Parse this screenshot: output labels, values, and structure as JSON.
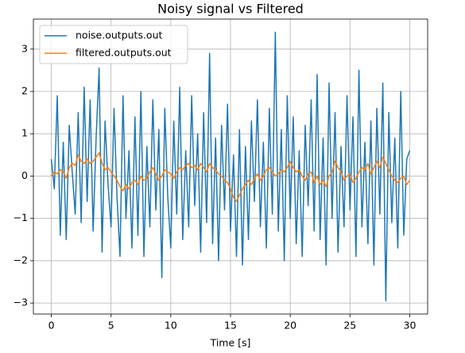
{
  "chart_data": {
    "type": "line",
    "title": "Noisy signal vs Filtered",
    "xlabel": "Time [s]",
    "x": [
      0,
      0.25,
      0.5,
      0.75,
      1,
      1.25,
      1.5,
      1.75,
      2,
      2.25,
      2.5,
      2.75,
      3,
      3.25,
      3.5,
      3.75,
      4,
      4.25,
      4.5,
      4.75,
      5,
      5.25,
      5.5,
      5.75,
      6,
      6.25,
      6.5,
      6.75,
      7,
      7.25,
      7.5,
      7.75,
      8,
      8.25,
      8.5,
      8.75,
      9,
      9.25,
      9.5,
      9.75,
      10,
      10.25,
      10.5,
      10.75,
      11,
      11.25,
      11.5,
      11.75,
      12,
      12.25,
      12.5,
      12.75,
      13,
      13.25,
      13.5,
      13.75,
      14,
      14.25,
      14.5,
      14.75,
      15,
      15.25,
      15.5,
      15.75,
      16,
      16.25,
      16.5,
      16.75,
      17,
      17.25,
      17.5,
      17.75,
      18,
      18.25,
      18.5,
      18.75,
      19,
      19.25,
      19.5,
      19.75,
      20,
      20.25,
      20.5,
      20.75,
      21,
      21.25,
      21.5,
      21.75,
      22,
      22.25,
      22.5,
      22.75,
      23,
      23.25,
      23.5,
      23.75,
      24,
      24.25,
      24.5,
      24.75,
      25,
      25.25,
      25.5,
      25.75,
      26,
      26.25,
      26.5,
      26.75,
      27,
      27.25,
      27.5,
      27.75,
      28,
      28.25,
      28.5,
      28.75,
      29,
      29.25,
      29.5,
      29.75,
      30
    ],
    "series": [
      {
        "name": "noise.outputs.out",
        "color": "#1f77b4",
        "values": [
          0.4,
          -0.3,
          1.9,
          -1.4,
          0.8,
          -1.5,
          1.2,
          0.1,
          -0.9,
          1.5,
          -1.1,
          2.1,
          -0.6,
          1.8,
          -1.3,
          0.9,
          2.55,
          -1.8,
          1.3,
          -0.2,
          -1.2,
          1.6,
          -0.5,
          -1.9,
          1.9,
          -1.0,
          0.6,
          -1.7,
          1.4,
          -1.4,
          2.0,
          -1.9,
          0.7,
          -1.2,
          1.8,
          -0.8,
          1.1,
          -2.4,
          1.6,
          -0.5,
          -1.7,
          1.3,
          -0.9,
          2.1,
          -1.5,
          0.6,
          -1.2,
          1.9,
          -0.7,
          1.0,
          -1.8,
          1.5,
          -1.1,
          2.9,
          -1.6,
          0.9,
          -2.0,
          1.2,
          -0.8,
          1.7,
          -1.3,
          0.5,
          -1.9,
          1.1,
          -2.1,
          0.7,
          -1.5,
          1.3,
          -0.6,
          1.8,
          -1.2,
          0.8,
          -1.7,
          1.6,
          -0.9,
          3.4,
          -1.3,
          1.1,
          -2.0,
          1.9,
          -1.0,
          1.4,
          -1.6,
          0.6,
          -1.9,
          1.2,
          -0.7,
          1.8,
          -1.3,
          2.4,
          -1.5,
          0.9,
          -2.1,
          2.2,
          -1.0,
          1.5,
          -1.8,
          0.7,
          -1.2,
          1.9,
          -0.8,
          1.4,
          -1.9,
          2.5,
          -1.2,
          0.8,
          -1.6,
          1.3,
          -2.1,
          1.6,
          -0.9,
          2.2,
          -2.95,
          1.5,
          -1.1,
          0.9,
          -1.7,
          2.0,
          -1.4,
          0.4,
          0.6
        ]
      },
      {
        "name": "filtered.outputs.out",
        "color": "#ff7f0e",
        "values": [
          0.0,
          0.1,
          0.05,
          0.15,
          0.1,
          -0.05,
          0.2,
          0.3,
          0.25,
          0.5,
          0.35,
          0.3,
          0.4,
          0.3,
          0.35,
          0.45,
          0.55,
          0.3,
          0.15,
          0.2,
          0.1,
          0.0,
          -0.1,
          -0.25,
          -0.35,
          -0.2,
          -0.3,
          -0.15,
          -0.1,
          -0.2,
          0.0,
          -0.1,
          -0.05,
          0.1,
          0.2,
          0.05,
          -0.1,
          0.0,
          0.15,
          0.1,
          0.05,
          -0.05,
          0.1,
          0.2,
          0.15,
          0.25,
          0.3,
          0.2,
          0.25,
          0.15,
          0.3,
          0.2,
          0.1,
          0.3,
          0.2,
          0.15,
          0.05,
          0.0,
          -0.1,
          -0.15,
          -0.3,
          -0.5,
          -0.6,
          -0.45,
          -0.3,
          -0.2,
          -0.1,
          -0.2,
          -0.05,
          0.05,
          -0.1,
          0.0,
          0.15,
          0.2,
          0.1,
          0.0,
          0.05,
          0.15,
          0.1,
          0.2,
          0.35,
          0.2,
          0.1,
          0.15,
          0.0,
          -0.1,
          0.05,
          0.1,
          -0.15,
          0.0,
          -0.2,
          -0.1,
          -0.25,
          0.0,
          0.1,
          0.35,
          0.2,
          0.1,
          -0.1,
          0.0,
          0.05,
          -0.15,
          -0.05,
          0.1,
          0.2,
          0.15,
          0.3,
          0.05,
          0.2,
          0.35,
          0.2,
          0.45,
          0.3,
          0.15,
          0.0,
          -0.1,
          -0.15,
          -0.05,
          0.0,
          -0.2,
          -0.1
        ]
      }
    ],
    "xlim": [
      -1.5,
      31.5
    ],
    "ylim": [
      -3.26,
      3.71
    ],
    "xticks": [
      0,
      5,
      10,
      15,
      20,
      25,
      30
    ],
    "yticks": [
      {
        "value": -3,
        "label": "−3"
      },
      {
        "value": -2,
        "label": "−2"
      },
      {
        "value": -1,
        "label": "−1"
      },
      0,
      1,
      2,
      3
    ],
    "grid": true,
    "legend": "upper left"
  }
}
